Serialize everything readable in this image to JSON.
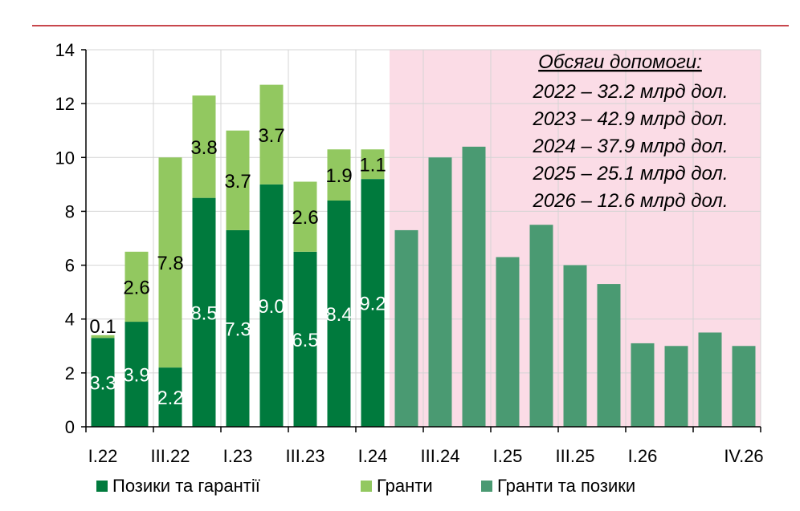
{
  "chart_data": {
    "type": "bar",
    "stacked": true,
    "categories": [
      "I.22",
      "II.22",
      "III.22",
      "IV.22",
      "I.23",
      "II.23",
      "III.23",
      "IV.23",
      "I.24",
      "II.24",
      "III.24",
      "IV.24",
      "I.25",
      "II.25",
      "III.25",
      "IV.25",
      "I.26",
      "II.26",
      "III.26",
      "IV.26"
    ],
    "x_tick_labels": [
      "I.22",
      "III.22",
      "I.23",
      "III.23",
      "I.24",
      "III.24",
      "I.25",
      "III.25",
      "I.26",
      "IV.26"
    ],
    "series": [
      {
        "name": "Позики та гарантії",
        "color": "#007A3D",
        "values": [
          3.3,
          3.9,
          2.2,
          8.5,
          7.3,
          9.0,
          6.5,
          8.4,
          9.2,
          null,
          null,
          null,
          null,
          null,
          null,
          null,
          null,
          null,
          null,
          null
        ],
        "labels": [
          "3.3",
          "3.9",
          "2.2",
          "8.5",
          "7.3",
          "9.0",
          "6.5",
          "8.4",
          "9.2"
        ]
      },
      {
        "name": "Гранти",
        "color": "#92C860",
        "values": [
          0.1,
          2.6,
          7.8,
          3.8,
          3.7,
          3.7,
          2.6,
          1.9,
          1.1,
          null,
          null,
          null,
          null,
          null,
          null,
          null,
          null,
          null,
          null,
          null
        ],
        "labels": [
          "0.1",
          "2.6",
          "7.8",
          "3.8",
          "3.7",
          "3.7",
          "2.6",
          "1.9",
          "1.1"
        ]
      },
      {
        "name": "Гранти та позики",
        "color": "#4A9A72",
        "values": [
          null,
          null,
          null,
          null,
          null,
          null,
          null,
          null,
          null,
          7.3,
          10.0,
          10.4,
          6.3,
          7.5,
          6.0,
          5.3,
          3.1,
          3.0,
          3.5,
          3.0
        ]
      }
    ],
    "ylim": [
      0,
      14
    ],
    "yticks": [
      "0",
      "2",
      "4",
      "6",
      "8",
      "10",
      "12",
      "14"
    ],
    "grid": true,
    "legend_placement": "bottom",
    "forecast_shading_color": "#FBDCE6",
    "annotation": {
      "title": "Обсяги допомоги:",
      "lines": [
        "2022 – 32.2 млрд дол.",
        "2023 – 42.9 млрд дол.",
        "2024 – 37.9 млрд дол.",
        "2025 – 25.1 млрд дол.",
        "2026 – 12.6 млрд дол."
      ]
    },
    "header_rule_color": "#C8474C"
  }
}
